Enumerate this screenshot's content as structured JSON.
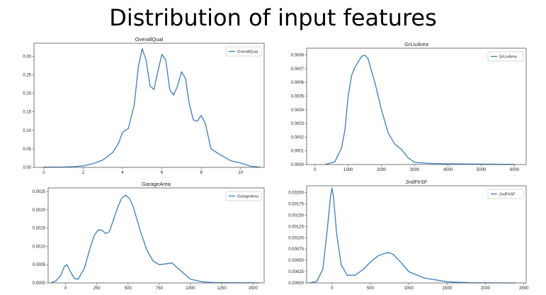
{
  "page": {
    "title": "Distribution of input features"
  },
  "chart_data": [
    {
      "type": "line",
      "title": "OverallQual",
      "legend": "OverallQual",
      "legend_position": "top-right",
      "xlim": [
        -0.5,
        11.2
      ],
      "ylim": [
        0,
        0.335
      ],
      "xticks": [
        0,
        2,
        4,
        6,
        8,
        10
      ],
      "xtick_labels": [
        "0",
        "2",
        "4",
        "6",
        "8",
        "10"
      ],
      "yticks": [
        0,
        0.05,
        0.1,
        0.15,
        0.2,
        0.25,
        0.3
      ],
      "ytick_labels": [
        "0.00",
        "0.05",
        "0.10",
        "0.15",
        "0.20",
        "0.25",
        "0.30"
      ],
      "series": [
        {
          "name": "OverallQual",
          "x": [
            0,
            1,
            1.5,
            2,
            2.5,
            3,
            3.5,
            3.8,
            4,
            4.3,
            4.6,
            4.8,
            5,
            5.2,
            5.4,
            5.6,
            5.8,
            6,
            6.2,
            6.4,
            6.6,
            6.8,
            7,
            7.2,
            7.4,
            7.6,
            7.8,
            8,
            8.2,
            8.5,
            9,
            9.5,
            10,
            10.5,
            11
          ],
          "y": [
            0.0005,
            0.001,
            0.002,
            0.004,
            0.01,
            0.02,
            0.04,
            0.065,
            0.095,
            0.105,
            0.17,
            0.27,
            0.32,
            0.29,
            0.22,
            0.21,
            0.26,
            0.305,
            0.29,
            0.21,
            0.195,
            0.22,
            0.258,
            0.24,
            0.17,
            0.128,
            0.125,
            0.14,
            0.12,
            0.05,
            0.033,
            0.018,
            0.012,
            0.003,
            0.0005
          ]
        }
      ]
    },
    {
      "type": "line",
      "title": "GrLivArea",
      "legend": "GrLivArea",
      "legend_position": "top-right",
      "xlim": [
        -250,
        6350
      ],
      "ylim": [
        0,
        0.00085
      ],
      "xticks": [
        0,
        1000,
        2000,
        3000,
        4000,
        5000,
        6000
      ],
      "xtick_labels": [
        "0",
        "1000",
        "2000",
        "3000",
        "4000",
        "5000",
        "6000"
      ],
      "yticks": [
        0,
        0.0001,
        0.0002,
        0.0003,
        0.0004,
        0.0005,
        0.0006,
        0.0007,
        0.0008
      ],
      "ytick_labels": [
        "0.0000",
        "0.0001",
        "0.0002",
        "0.0003",
        "0.0004",
        "0.0005",
        "0.0006",
        "0.0007",
        "0.0008"
      ],
      "series": [
        {
          "name": "GrLivArea",
          "x": [
            300,
            600,
            800,
            900,
            1000,
            1100,
            1200,
            1300,
            1400,
            1500,
            1600,
            1800,
            2000,
            2200,
            2400,
            2600,
            2800,
            3000,
            3500,
            4000,
            5000,
            6000
          ],
          "y": [
            0,
            2e-05,
            0.00012,
            0.00025,
            0.0005,
            0.00065,
            0.00071,
            0.00075,
            0.00079,
            0.0008,
            0.00077,
            0.0006,
            0.0004,
            0.00023,
            0.00015,
            0.00011,
            5e-05,
            1.5e-05,
            8e-06,
            5e-06,
            3e-06,
            1e-06
          ]
        }
      ]
    },
    {
      "type": "line",
      "title": "GarageArea",
      "legend": "GarageArea",
      "legend_position": "top-right",
      "xlim": [
        -140,
        1590
      ],
      "ylim": [
        0,
        0.0026
      ],
      "xticks": [
        0,
        250,
        500,
        750,
        1000,
        1250,
        1500
      ],
      "xtick_labels": [
        "0",
        "250",
        "500",
        "750",
        "1000",
        "1250",
        "1500"
      ],
      "yticks": [
        0,
        0.0005,
        0.001,
        0.0015,
        0.002,
        0.0025
      ],
      "ytick_labels": [
        "0.0000",
        "0.0005",
        "0.0010",
        "0.0015",
        "0.0020",
        "0.0025"
      ],
      "series": [
        {
          "name": "GarageArea",
          "x": [
            -120,
            -80,
            -40,
            -10,
            10,
            40,
            70,
            100,
            150,
            200,
            230,
            260,
            290,
            320,
            350,
            380,
            420,
            450,
            480,
            510,
            540,
            600,
            650,
            700,
            750,
            800,
            850,
            900,
            1000,
            1100,
            1200,
            1300,
            1450,
            1550
          ],
          "y": [
            0,
            5e-05,
            0.0002,
            0.00045,
            0.0005,
            0.0003,
            0.00012,
            0.0001,
            0.0004,
            0.001,
            0.0013,
            0.00145,
            0.00145,
            0.00135,
            0.0014,
            0.0017,
            0.0021,
            0.00232,
            0.0024,
            0.00232,
            0.0021,
            0.0014,
            0.0009,
            0.0006,
            0.0005,
            0.00052,
            0.00055,
            0.0004,
            0.0001,
            3e-05,
            1e-05,
            5e-06,
            3e-06,
            1e-06
          ]
        }
      ]
    },
    {
      "type": "line",
      "title": "2ndFlrSF",
      "legend": "2ndFlrSF",
      "legend_position": "top-right",
      "xlim": [
        -330,
        2530
      ],
      "ylim": [
        0,
        0.00215
      ],
      "xticks": [
        0,
        500,
        1000,
        1500,
        2000,
        2500
      ],
      "xtick_labels": [
        "0",
        "500",
        "1000",
        "1500",
        "2000",
        "2500"
      ],
      "yticks": [
        0,
        0.00025,
        0.0005,
        0.00075,
        0.001,
        0.00125,
        0.0015,
        0.00175,
        0.002
      ],
      "ytick_labels": [
        "0.00000",
        "0.00025",
        "0.00050",
        "0.00075",
        "0.00100",
        "0.00125",
        "0.00150",
        "0.00175",
        "0.00200"
      ],
      "series": [
        {
          "name": "2ndFlrSF",
          "x": [
            -300,
            -200,
            -120,
            -60,
            -20,
            0,
            20,
            60,
            120,
            200,
            300,
            400,
            500,
            600,
            700,
            750,
            800,
            900,
            1000,
            1200,
            1500,
            1800,
            2100,
            2400
          ],
          "y": [
            0,
            3e-05,
            0.0003,
            0.0012,
            0.0019,
            0.0021,
            0.0019,
            0.0011,
            0.0004,
            0.00017,
            0.00017,
            0.00029,
            0.00046,
            0.0006,
            0.00066,
            0.00067,
            0.00063,
            0.00045,
            0.00025,
            0.00011,
            2.5e-05,
            5e-06,
            1e-06,
            0
          ]
        }
      ]
    }
  ]
}
